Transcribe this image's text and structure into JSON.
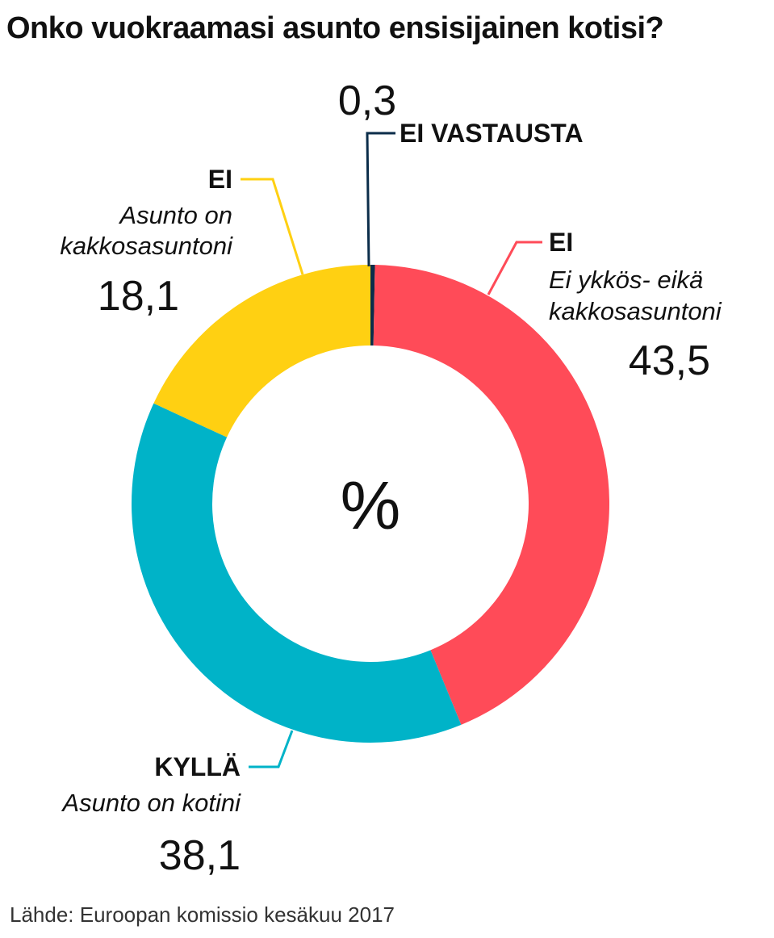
{
  "title": "Onko vuokraamasi asunto ensisijainen kotisi?",
  "source": "Lähde: Euroopan komissio kesäkuu 2017",
  "chart_data": {
    "type": "pie",
    "donut": true,
    "title": "Onko vuokraamasi asunto ensisijainen kotisi?",
    "center_label": "%",
    "slices": [
      {
        "id": "ei-vastausta",
        "category": "EI VASTAUSTA",
        "description": "",
        "value": 0.3,
        "value_label": "0,3",
        "color": "#0b2d4a"
      },
      {
        "id": "ei-ykkos-eika-kakkos",
        "category": "EI",
        "description": [
          "Ei ykkös- eikä",
          "kakkosasuntoni"
        ],
        "value": 43.5,
        "value_label": "43,5",
        "color": "#ff4b58"
      },
      {
        "id": "kylla",
        "category": "KYLLÄ",
        "description": [
          "Asunto on kotini"
        ],
        "value": 38.1,
        "value_label": "38,1",
        "color": "#00b3c8"
      },
      {
        "id": "ei-kakkosasunto",
        "category": "EI",
        "description": [
          "Asunto on",
          "kakkosasuntoni"
        ],
        "value": 18.1,
        "value_label": "18,1",
        "color": "#ffd012"
      }
    ],
    "value_unit": "%"
  }
}
